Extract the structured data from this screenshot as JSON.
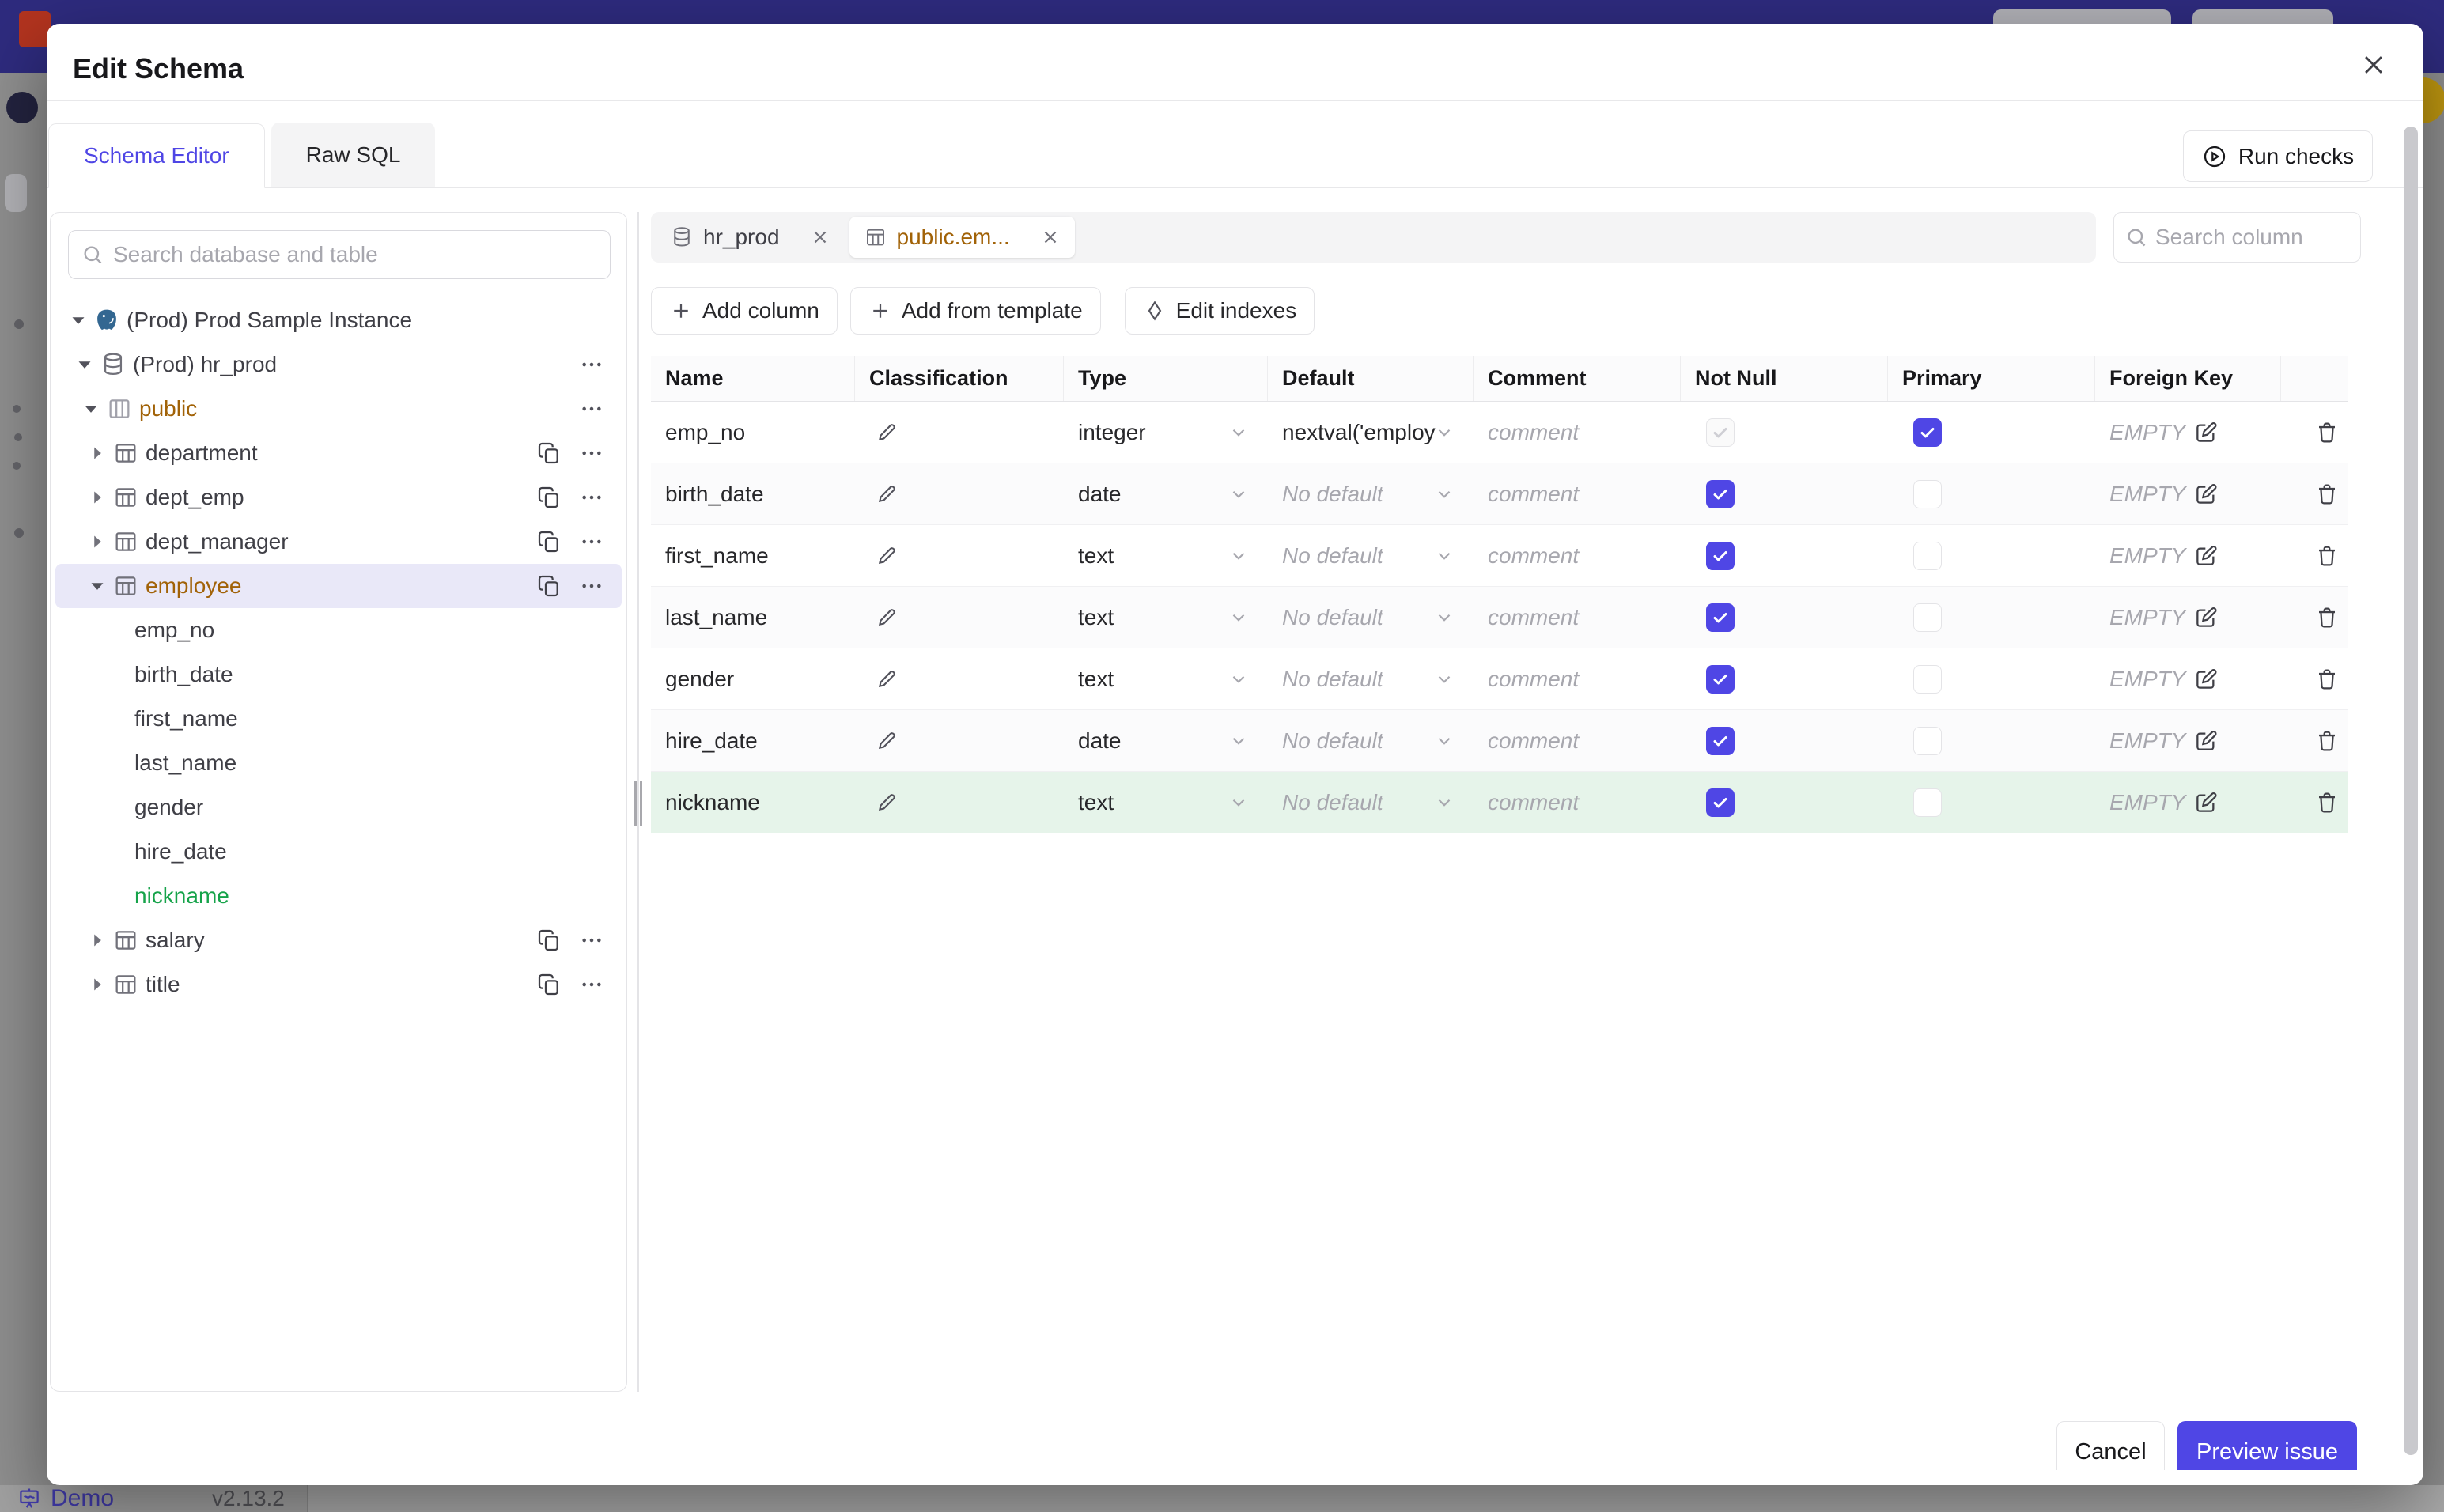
{
  "backdrop": {
    "bottom_bar": {
      "demo_label": "Demo",
      "version": "v2.13.2"
    }
  },
  "modal": {
    "title": "Edit Schema",
    "tabs": [
      {
        "label": "Schema Editor",
        "active": true
      },
      {
        "label": "Raw SQL",
        "active": false
      }
    ],
    "run_checks_label": "Run checks",
    "sidebar": {
      "search_placeholder": "Search database and table",
      "tree": [
        {
          "label": "(Prod) Prod Sample Instance",
          "icon": "postgres",
          "level": 0,
          "expanded": true
        },
        {
          "label": "(Prod) hr_prod",
          "icon": "database",
          "level": 1,
          "expanded": true,
          "actions": [
            "more"
          ]
        },
        {
          "label": "public",
          "icon": "schema",
          "level": 2,
          "expanded": true,
          "color": "orange",
          "actions": [
            "more"
          ]
        },
        {
          "label": "department",
          "icon": "table",
          "level": 3,
          "expanded": false,
          "actions": [
            "copy",
            "more"
          ]
        },
        {
          "label": "dept_emp",
          "icon": "table",
          "level": 3,
          "expanded": false,
          "actions": [
            "copy",
            "more"
          ]
        },
        {
          "label": "dept_manager",
          "icon": "table",
          "level": 3,
          "expanded": false,
          "actions": [
            "copy",
            "more"
          ]
        },
        {
          "label": "employee",
          "icon": "table",
          "level": 3,
          "expanded": true,
          "selected": true,
          "color": "orange",
          "actions": [
            "copy",
            "more"
          ]
        },
        {
          "label": "emp_no",
          "level": 4
        },
        {
          "label": "birth_date",
          "level": 4
        },
        {
          "label": "first_name",
          "level": 4
        },
        {
          "label": "last_name",
          "level": 4
        },
        {
          "label": "gender",
          "level": 4
        },
        {
          "label": "hire_date",
          "level": 4
        },
        {
          "label": "nickname",
          "level": 4,
          "color": "green"
        },
        {
          "label": "salary",
          "icon": "table",
          "level": 3,
          "expanded": false,
          "actions": [
            "copy",
            "more"
          ]
        },
        {
          "label": "title",
          "icon": "table",
          "level": 3,
          "expanded": false,
          "actions": [
            "copy",
            "more"
          ]
        }
      ]
    },
    "editor": {
      "tabs": [
        {
          "label": "hr_prod",
          "icon": "database",
          "active": false
        },
        {
          "label": "public.em...",
          "icon": "table",
          "active": true
        }
      ],
      "column_search_placeholder": "Search column",
      "toolbar": [
        {
          "label": "Add column",
          "icon": "plus"
        },
        {
          "label": "Add from template",
          "icon": "plus"
        },
        {
          "label": "Edit indexes",
          "icon": "diamond"
        }
      ],
      "table": {
        "headers": [
          "Name",
          "Classification",
          "Type",
          "Default",
          "Comment",
          "Not Null",
          "Primary",
          "Foreign Key"
        ],
        "comment_placeholder": "comment",
        "fk_empty": "EMPTY",
        "rows": [
          {
            "name": "emp_no",
            "type": "integer",
            "default": "nextval('employ",
            "default_is_set": true,
            "not_null": "disabled",
            "primary": "checked",
            "highlight": false
          },
          {
            "name": "birth_date",
            "type": "date",
            "default": "No default",
            "default_is_set": false,
            "not_null": "checked",
            "primary": "unchecked",
            "highlight": false
          },
          {
            "name": "first_name",
            "type": "text",
            "default": "No default",
            "default_is_set": false,
            "not_null": "checked",
            "primary": "unchecked",
            "highlight": false
          },
          {
            "name": "last_name",
            "type": "text",
            "default": "No default",
            "default_is_set": false,
            "not_null": "checked",
            "primary": "unchecked",
            "highlight": false
          },
          {
            "name": "gender",
            "type": "text",
            "default": "No default",
            "default_is_set": false,
            "not_null": "checked",
            "primary": "unchecked",
            "highlight": false
          },
          {
            "name": "hire_date",
            "type": "date",
            "default": "No default",
            "default_is_set": false,
            "not_null": "checked",
            "primary": "unchecked",
            "highlight": false
          },
          {
            "name": "nickname",
            "type": "text",
            "default": "No default",
            "default_is_set": false,
            "not_null": "checked",
            "primary": "unchecked",
            "highlight": true
          }
        ]
      }
    },
    "footer": {
      "cancel_label": "Cancel",
      "submit_label": "Preview issue"
    }
  },
  "colors": {
    "accent": "#4f46e5",
    "navy_topbar": "#2e2b7e",
    "orange_modified": "#a16207",
    "green_added_text": "#16a34a",
    "green_added_row_bg": "#e6f4ea",
    "selected_tree_bg": "#e9e8f8",
    "avatar_gold": "#bf9710"
  }
}
